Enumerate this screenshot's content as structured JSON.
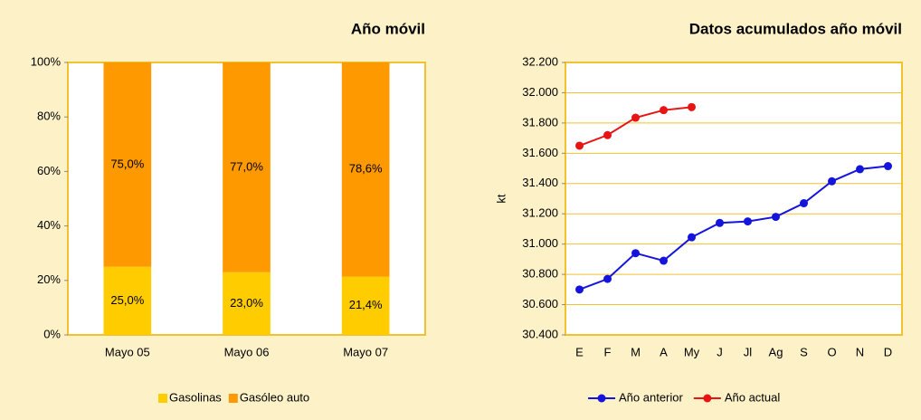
{
  "chart_data": [
    {
      "type": "stacked_bar",
      "title": "Año móvil",
      "categories": [
        "Mayo 05",
        "Mayo 06",
        "Mayo 07"
      ],
      "series": [
        {
          "name": "Gasolinas",
          "color": "#ffcc00",
          "values": [
            25.0,
            23.0,
            21.4
          ],
          "value_labels": [
            "25,0%",
            "23,0%",
            "21,4%"
          ]
        },
        {
          "name": "Gasóleo auto",
          "color": "#ff9900",
          "values": [
            75.0,
            77.0,
            78.6
          ],
          "value_labels": [
            "75,0%",
            "77,0%",
            "78,6%"
          ]
        }
      ],
      "ylim": [
        0,
        100
      ],
      "yticks": [
        {
          "value": 0,
          "label": "0%"
        },
        {
          "value": 20,
          "label": "20%"
        },
        {
          "value": 40,
          "label": "40%"
        },
        {
          "value": 60,
          "label": "60%"
        },
        {
          "value": 80,
          "label": "80%"
        },
        {
          "value": 100,
          "label": "100%"
        }
      ],
      "grid": false
    },
    {
      "type": "line",
      "title": "Datos acumulados año móvil",
      "y_label": "kt",
      "categories": [
        "E",
        "F",
        "M",
        "A",
        "My",
        "J",
        "Jl",
        "Ag",
        "S",
        "O",
        "N",
        "D"
      ],
      "series": [
        {
          "name": "Año anterior",
          "color": "#1414dc",
          "values": [
            30700,
            30770,
            30940,
            30890,
            31045,
            31140,
            31150,
            31180,
            31270,
            31415,
            31495,
            31515
          ]
        },
        {
          "name": "Año actual",
          "color": "#e81414",
          "values": [
            31650,
            31720,
            31835,
            31885,
            31905,
            null,
            null,
            null,
            null,
            null,
            null,
            null
          ]
        }
      ],
      "ylim": [
        30400,
        32200
      ],
      "yticks": [
        {
          "value": 30400,
          "label": "30.400"
        },
        {
          "value": 30600,
          "label": "30.600"
        },
        {
          "value": 30800,
          "label": "30.800"
        },
        {
          "value": 31000,
          "label": "31.000"
        },
        {
          "value": 31200,
          "label": "31.200"
        },
        {
          "value": 31400,
          "label": "31.400"
        },
        {
          "value": 31600,
          "label": "31.600"
        },
        {
          "value": 31800,
          "label": "31.800"
        },
        {
          "value": 32000,
          "label": "32.000"
        },
        {
          "value": 32200,
          "label": "32.200"
        }
      ],
      "grid": true
    }
  ]
}
